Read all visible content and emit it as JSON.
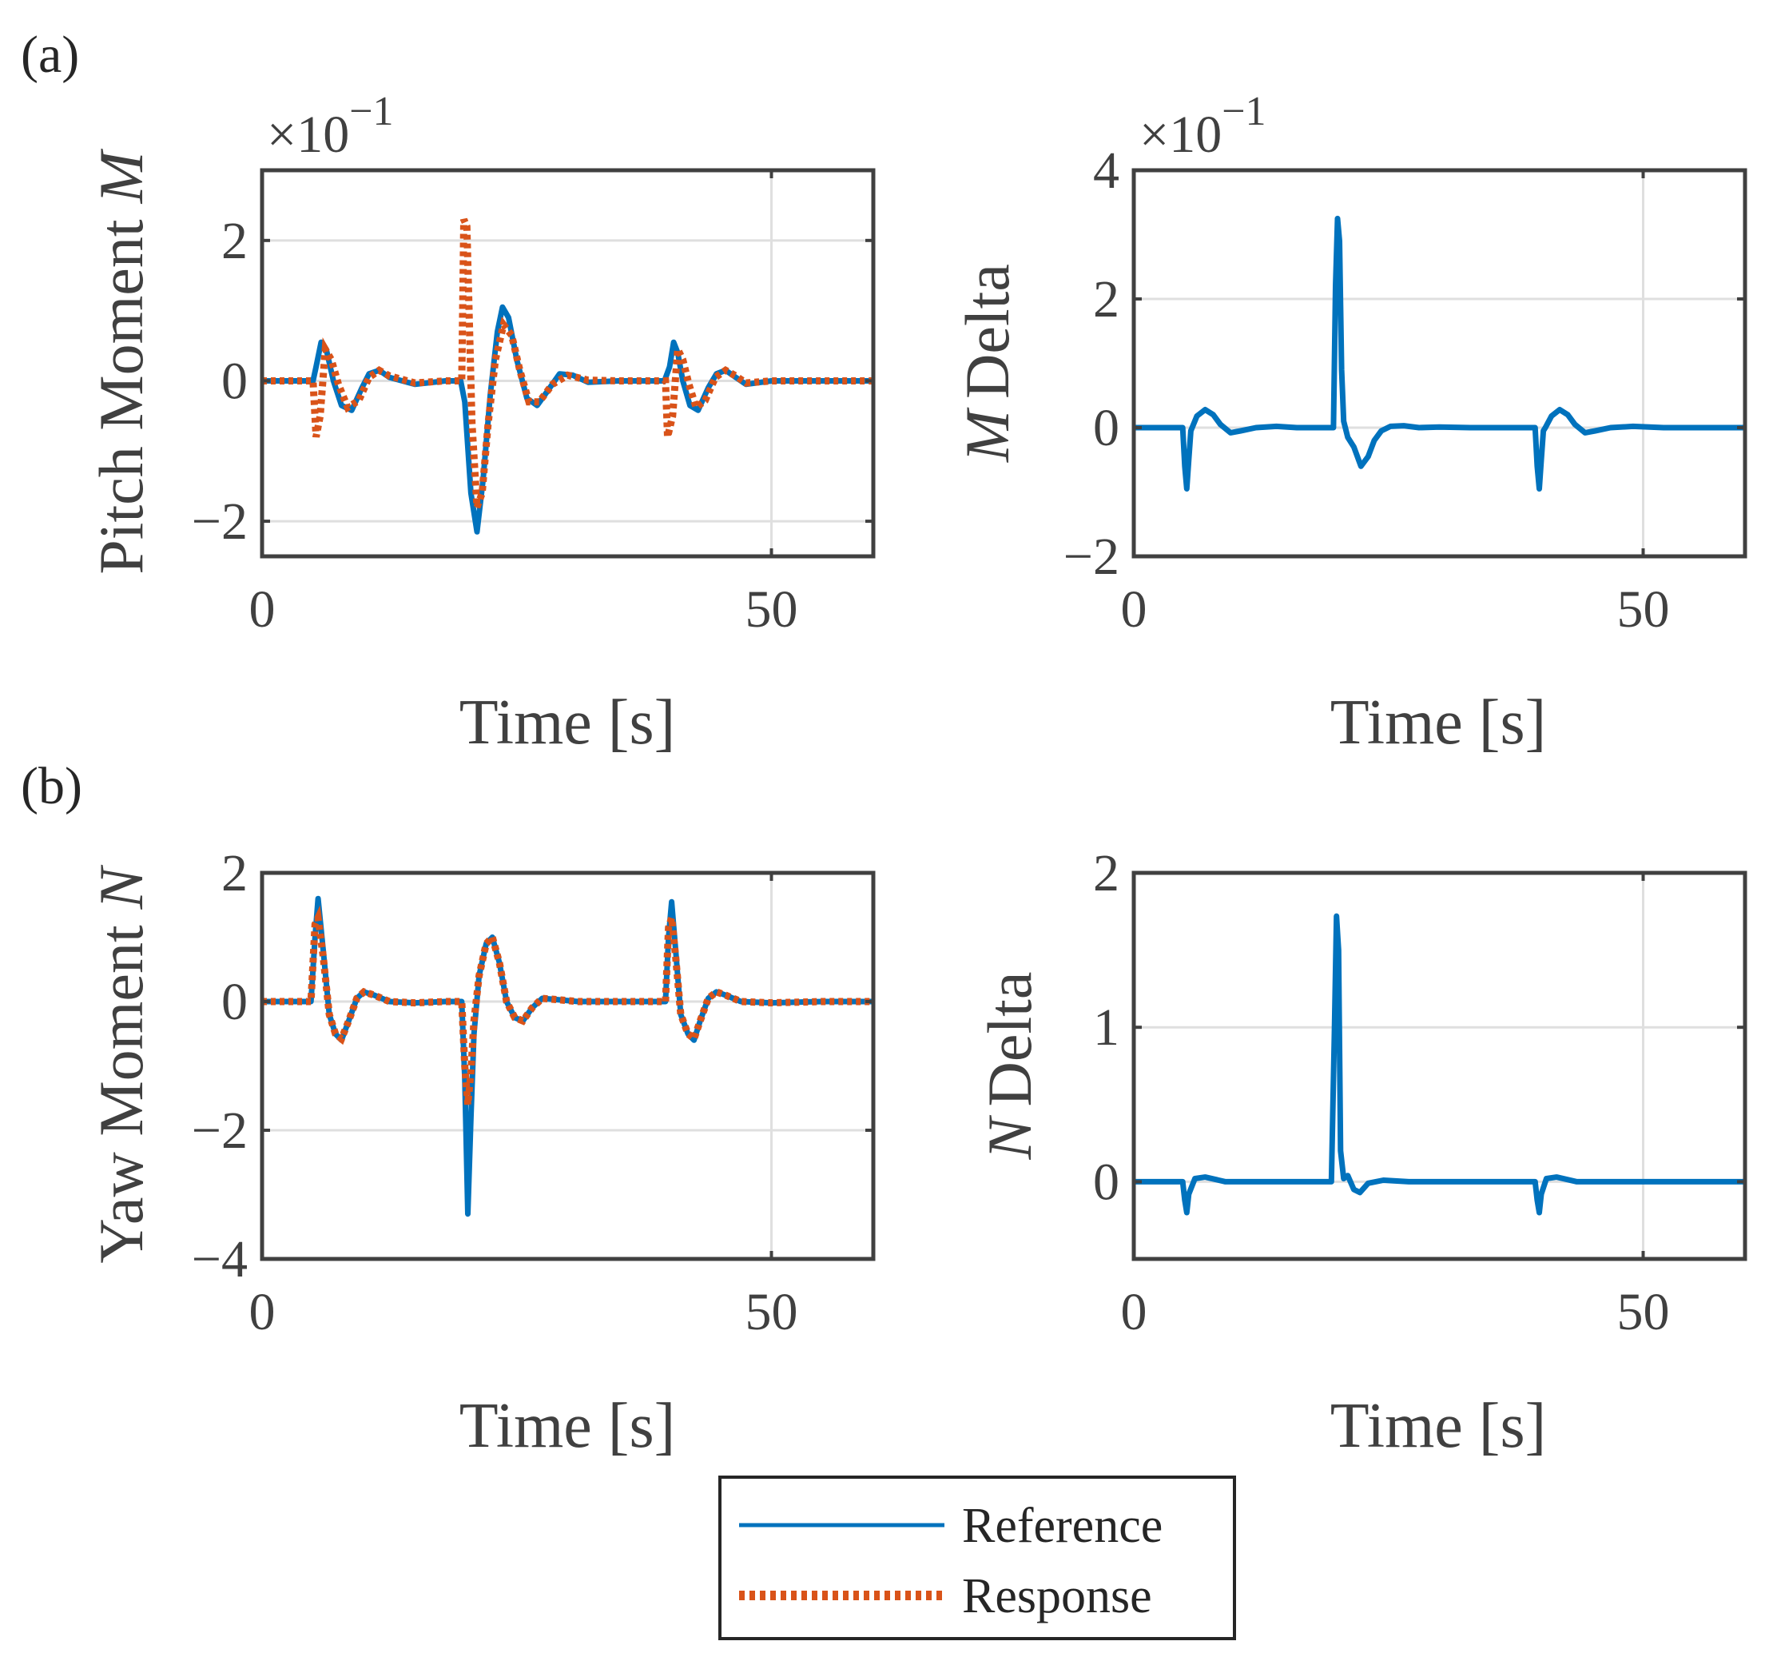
{
  "panel_labels": [
    "(a)",
    "(b)"
  ],
  "colors": {
    "reference": "#0072BD",
    "response": "#D95319",
    "axis": "#404040",
    "grid": "#DFDFDF"
  },
  "legend": {
    "placement": "bottom-center",
    "entries": [
      "Reference",
      "Response"
    ]
  },
  "chart_data": [
    {
      "type": "line",
      "panel": "(a)",
      "ylabel_text": "Pitch Moment",
      "ylabel_sym": "M",
      "xlabel": "Time [s]",
      "multiplier": "×10",
      "multiplier_exp": "−1",
      "xlim": [
        0,
        60
      ],
      "ylim": [
        -2.5,
        3
      ],
      "xticks": [
        0,
        50
      ],
      "xtick_labels": [
        "0",
        "50"
      ],
      "yticks": [
        -2,
        0,
        2
      ],
      "ytick_labels": [
        "−2",
        "0",
        "2"
      ],
      "grid": true,
      "series": [
        {
          "name": "Reference",
          "style": "solid",
          "x": [
            0,
            5,
            5.3,
            5.8,
            6.3,
            7,
            7.8,
            8.8,
            9.8,
            10.5,
            11.5,
            12.5,
            15,
            18,
            19.5,
            19.9,
            20.5,
            21.1,
            21.7,
            22.4,
            23.1,
            23.6,
            24.2,
            25,
            26,
            27,
            28,
            29.2,
            30.5,
            32,
            35,
            38,
            39.5,
            40,
            40.4,
            40.8,
            41.3,
            42,
            42.8,
            43.8,
            44.6,
            45.5,
            46.5,
            47.5,
            50,
            55,
            60
          ],
          "y": [
            0,
            0,
            0.2,
            0.55,
            0.45,
            0,
            -0.35,
            -0.42,
            -0.1,
            0.1,
            0.15,
            0.05,
            -0.05,
            0,
            0,
            -0.3,
            -1.6,
            -2.15,
            -1.4,
            -0.2,
            0.7,
            1.05,
            0.9,
            0.3,
            -0.25,
            -0.35,
            -0.15,
            0.1,
            0.08,
            -0.02,
            0,
            0,
            0,
            0.2,
            0.55,
            0.4,
            0,
            -0.35,
            -0.42,
            -0.1,
            0.1,
            0.15,
            0.05,
            -0.05,
            0,
            0,
            0
          ]
        },
        {
          "name": "Response",
          "style": "dotted",
          "x": [
            0,
            5,
            5.3,
            5.7,
            6.2,
            6.8,
            7.5,
            8.4,
            9.5,
            10.5,
            11.5,
            12.5,
            15,
            18,
            19.6,
            19.8,
            20.1,
            20.6,
            21.1,
            21.6,
            22.2,
            22.9,
            23.7,
            24.5,
            25.3,
            26.2,
            27.2,
            28.5,
            30,
            32,
            35,
            38,
            39.6,
            39.8,
            40.3,
            40.8,
            41.3,
            41.9,
            42.6,
            43.5,
            44.5,
            45.5,
            46.5,
            47.5,
            50,
            55,
            60
          ],
          "y": [
            0,
            0,
            -0.8,
            -0.5,
            0.45,
            0.3,
            -0.05,
            -0.38,
            -0.28,
            0.05,
            0.15,
            0.07,
            -0.03,
            0,
            0,
            2.3,
            2.2,
            -0.6,
            -1.8,
            -1.6,
            -0.6,
            0.3,
            0.8,
            0.65,
            0.15,
            -0.3,
            -0.3,
            -0.05,
            0.08,
            0.01,
            0,
            0,
            0,
            -0.8,
            -0.5,
            0.45,
            0.3,
            -0.05,
            -0.38,
            -0.28,
            0.05,
            0.15,
            0.07,
            -0.03,
            0,
            0,
            0
          ]
        }
      ]
    },
    {
      "type": "line",
      "panel": "(a)",
      "ylabel_text": "Delta",
      "ylabel_sym": "M",
      "xlabel": "Time [s]",
      "multiplier": "×10",
      "multiplier_exp": "−1",
      "xlim": [
        0,
        60
      ],
      "ylim": [
        -2,
        4
      ],
      "xticks": [
        0,
        50
      ],
      "xtick_labels": [
        "0",
        "50"
      ],
      "yticks": [
        -2,
        0,
        2,
        4
      ],
      "ytick_labels": [
        "−2",
        "0",
        "2",
        "4"
      ],
      "grid": true,
      "series": [
        {
          "name": "Reference",
          "style": "solid",
          "x": [
            0,
            4.8,
            5,
            5.2,
            5.4,
            5.6,
            6.2,
            7,
            7.8,
            8.5,
            9.5,
            10.5,
            12,
            14,
            16,
            18,
            19.6,
            19.8,
            20,
            20.2,
            20.4,
            20.6,
            21,
            21.6,
            22.3,
            23,
            23.6,
            24.3,
            25.2,
            26.5,
            28,
            30,
            33,
            36,
            39.4,
            39.6,
            39.8,
            40,
            40.2,
            40.4,
            41,
            41.8,
            42.6,
            43.3,
            44.3,
            45.3,
            46.8,
            49,
            52,
            56,
            60
          ],
          "y": [
            0,
            0,
            -0.6,
            -0.95,
            -0.5,
            -0.05,
            0.18,
            0.28,
            0.2,
            0.05,
            -0.08,
            -0.05,
            0,
            0.02,
            0,
            0,
            0,
            2.2,
            3.25,
            2.9,
            0.9,
            0.1,
            -0.15,
            -0.3,
            -0.6,
            -0.45,
            -0.2,
            -0.05,
            0.02,
            0.03,
            0,
            0.01,
            0,
            0,
            0,
            -0.6,
            -0.95,
            -0.5,
            -0.05,
            0,
            0.18,
            0.28,
            0.2,
            0.05,
            -0.08,
            -0.05,
            0,
            0.02,
            0,
            0,
            0
          ]
        }
      ]
    },
    {
      "type": "line",
      "panel": "(b)",
      "ylabel_text": "Yaw Moment",
      "ylabel_sym": "N",
      "xlabel": "Time [s]",
      "multiplier": "",
      "multiplier_exp": "",
      "xlim": [
        0,
        60
      ],
      "ylim": [
        -4,
        2
      ],
      "xticks": [
        0,
        50
      ],
      "xtick_labels": [
        "0",
        "50"
      ],
      "yticks": [
        -4,
        -2,
        0,
        2
      ],
      "ytick_labels": [
        "−4",
        "−2",
        "0",
        "2"
      ],
      "grid": true,
      "series": [
        {
          "name": "Reference",
          "style": "solid",
          "x": [
            0,
            4.8,
            5.2,
            5.5,
            6,
            6.6,
            7.2,
            7.8,
            8.5,
            9.3,
            10,
            11,
            12.5,
            15,
            18,
            19.6,
            19.9,
            20.2,
            20.5,
            20.8,
            21.3,
            22,
            22.6,
            23.3,
            24,
            24.8,
            25.6,
            26.5,
            27.5,
            29,
            31,
            35,
            38,
            39.6,
            39.9,
            40.2,
            40.6,
            41.1,
            41.8,
            42.4,
            43,
            43.8,
            44.6,
            45.5,
            47,
            50,
            55,
            60
          ],
          "y": [
            0,
            0,
            1.0,
            1.6,
            0.8,
            -0.2,
            -0.5,
            -0.6,
            -0.3,
            0.05,
            0.15,
            0.1,
            0,
            -0.02,
            0,
            0,
            -1.2,
            -3.3,
            -1.8,
            -0.5,
            0.4,
            0.9,
            1.0,
            0.6,
            0.0,
            -0.25,
            -0.3,
            -0.1,
            0.05,
            0.03,
            0,
            0,
            0,
            0,
            1.0,
            1.55,
            0.8,
            -0.2,
            -0.5,
            -0.6,
            -0.3,
            0.05,
            0.15,
            0.1,
            0,
            -0.02,
            0,
            0
          ]
        },
        {
          "name": "Response",
          "style": "dotted",
          "x": [
            0,
            4.8,
            5.2,
            5.5,
            6,
            6.6,
            7.2,
            7.8,
            8.5,
            9.3,
            10,
            11,
            12.5,
            15,
            18,
            19.6,
            19.9,
            20.2,
            20.5,
            20.8,
            21.3,
            22,
            22.6,
            23.3,
            24,
            24.8,
            25.6,
            26.5,
            27.5,
            29,
            31,
            35,
            38,
            39.6,
            39.9,
            40.2,
            40.6,
            41.1,
            41.8,
            42.4,
            43,
            43.8,
            44.6,
            45.5,
            47,
            50,
            55,
            60
          ],
          "y": [
            0,
            0,
            1.2,
            1.3,
            0.7,
            -0.2,
            -0.5,
            -0.58,
            -0.3,
            0.05,
            0.15,
            0.1,
            0,
            -0.02,
            0,
            0,
            -1.0,
            -1.6,
            -1.1,
            -0.3,
            0.4,
            0.9,
            1.0,
            0.6,
            0.0,
            -0.25,
            -0.3,
            -0.1,
            0.05,
            0.03,
            0,
            0,
            0,
            0,
            1.15,
            1.3,
            0.7,
            -0.2,
            -0.5,
            -0.58,
            -0.3,
            0.05,
            0.15,
            0.1,
            0,
            -0.02,
            0,
            0
          ]
        }
      ]
    },
    {
      "type": "line",
      "panel": "(b)",
      "ylabel_text": "Delta",
      "ylabel_sym": "N",
      "xlabel": "Time [s]",
      "multiplier": "",
      "multiplier_exp": "",
      "xlim": [
        0,
        60
      ],
      "ylim": [
        -0.5,
        2
      ],
      "xticks": [
        0,
        50
      ],
      "xtick_labels": [
        "0",
        "50"
      ],
      "yticks": [
        0,
        1,
        2
      ],
      "ytick_labels": [
        "0",
        "1",
        "2"
      ],
      "grid": true,
      "series": [
        {
          "name": "Reference",
          "style": "solid",
          "x": [
            0,
            4.8,
            5,
            5.2,
            5.4,
            6,
            7,
            9,
            12,
            16,
            19.4,
            19.7,
            19.9,
            20.1,
            20.3,
            20.6,
            21,
            21.6,
            22.2,
            23,
            24.5,
            27,
            32,
            36,
            39.4,
            39.6,
            39.8,
            40,
            40.5,
            41.5,
            43.5,
            47,
            52,
            56,
            60
          ],
          "y": [
            0,
            0,
            -0.12,
            -0.2,
            -0.08,
            0.02,
            0.03,
            0,
            0,
            0,
            0,
            1.0,
            1.72,
            1.5,
            0.2,
            0.02,
            0.04,
            -0.05,
            -0.07,
            -0.01,
            0.01,
            0,
            0,
            0,
            0,
            -0.12,
            -0.2,
            -0.08,
            0.02,
            0.03,
            0,
            0,
            0,
            0,
            0
          ]
        }
      ]
    }
  ]
}
